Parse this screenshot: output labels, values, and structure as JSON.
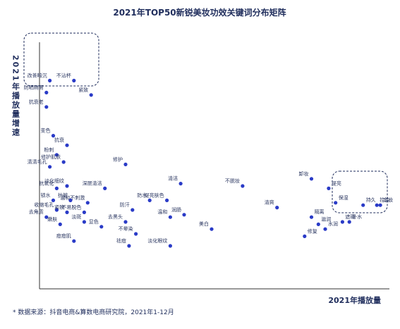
{
  "chart_data": {
    "type": "scatter",
    "title": "2021年TOP50新锐美妆功效关键词分布矩阵",
    "xlabel": "2021年播放量",
    "ylabel": "2021年播放量增速",
    "source": "* 数据来源：抖音电商&算数电商研究院，2021年1-12月",
    "colors": {
      "point": "#2a3bc7",
      "axis": "#333333",
      "frame": "#1f2d5c"
    },
    "points": [
      {
        "label": "改善暗沉",
        "x": 3,
        "y": 84
      },
      {
        "label": "不沾杯",
        "x": 10,
        "y": 84
      },
      {
        "label": "紧致",
        "x": 15,
        "y": 78
      },
      {
        "label": "防晒隔离",
        "x": 2,
        "y": 79
      },
      {
        "label": "抗衰老",
        "x": 2,
        "y": 73
      },
      {
        "label": "变色",
        "x": 4,
        "y": 61
      },
      {
        "label": "抗衰",
        "x": 8,
        "y": 57
      },
      {
        "label": "粉刺",
        "x": 5,
        "y": 53
      },
      {
        "label": "修护肌肤",
        "x": 7,
        "y": 50
      },
      {
        "label": "修护",
        "x": 25,
        "y": 49
      },
      {
        "label": "清清毛孔",
        "x": 3,
        "y": 48
      },
      {
        "label": "抗氧化",
        "x": 5,
        "y": 39
      },
      {
        "label": "淡化细纹",
        "x": 8,
        "y": 40
      },
      {
        "label": "深层清洁",
        "x": 19,
        "y": 39
      },
      {
        "label": "锁水",
        "x": 4,
        "y": 34
      },
      {
        "label": "抗皱",
        "x": 9,
        "y": 34
      },
      {
        "label": "温和不刺激",
        "x": 14,
        "y": 33
      },
      {
        "label": "收缩毛孔",
        "x": 5,
        "y": 30
      },
      {
        "label": "紧致",
        "x": 8,
        "y": 29
      },
      {
        "label": "去角质",
        "x": 2,
        "y": 27
      },
      {
        "label": "不易脱色",
        "x": 13,
        "y": 29
      },
      {
        "label": "淡斑",
        "x": 13,
        "y": 25
      },
      {
        "label": "嫩肤",
        "x": 6,
        "y": 24
      },
      {
        "label": "痘痘肌",
        "x": 10,
        "y": 17
      },
      {
        "label": "显色",
        "x": 18,
        "y": 23
      },
      {
        "label": "去黑头",
        "x": 25,
        "y": 25
      },
      {
        "label": "防汗",
        "x": 27,
        "y": 30
      },
      {
        "label": "防水",
        "x": 32,
        "y": 34
      },
      {
        "label": "清洁",
        "x": 41,
        "y": 41
      },
      {
        "label": "提亮肤色",
        "x": 37,
        "y": 34
      },
      {
        "label": "温和",
        "x": 38,
        "y": 27
      },
      {
        "label": "润肠",
        "x": 42,
        "y": 28
      },
      {
        "label": "不晕染",
        "x": 28,
        "y": 20
      },
      {
        "label": "祛痘",
        "x": 26,
        "y": 15
      },
      {
        "label": "淡化眼纹",
        "x": 38,
        "y": 15
      },
      {
        "label": "美白",
        "x": 50,
        "y": 22
      },
      {
        "label": "不脱妆",
        "x": 59,
        "y": 40
      },
      {
        "label": "清爽",
        "x": 69,
        "y": 31
      },
      {
        "label": "卸妆",
        "x": 79,
        "y": 43
      },
      {
        "label": "提亮",
        "x": 84,
        "y": 39
      },
      {
        "label": "保湿",
        "x": 86,
        "y": 33
      },
      {
        "label": "隔离",
        "x": 79,
        "y": 27
      },
      {
        "label": "滋润",
        "x": 81,
        "y": 24
      },
      {
        "label": "水润",
        "x": 83,
        "y": 22
      },
      {
        "label": "遮瑕",
        "x": 88,
        "y": 25
      },
      {
        "label": "修复",
        "x": 77,
        "y": 19
      },
      {
        "label": "补水",
        "x": 90,
        "y": 25
      },
      {
        "label": "持久",
        "x": 94,
        "y": 32
      },
      {
        "label": "定妆",
        "x": 99,
        "y": 32
      },
      {
        "label": "控油",
        "x": 98,
        "y": 32
      }
    ]
  }
}
